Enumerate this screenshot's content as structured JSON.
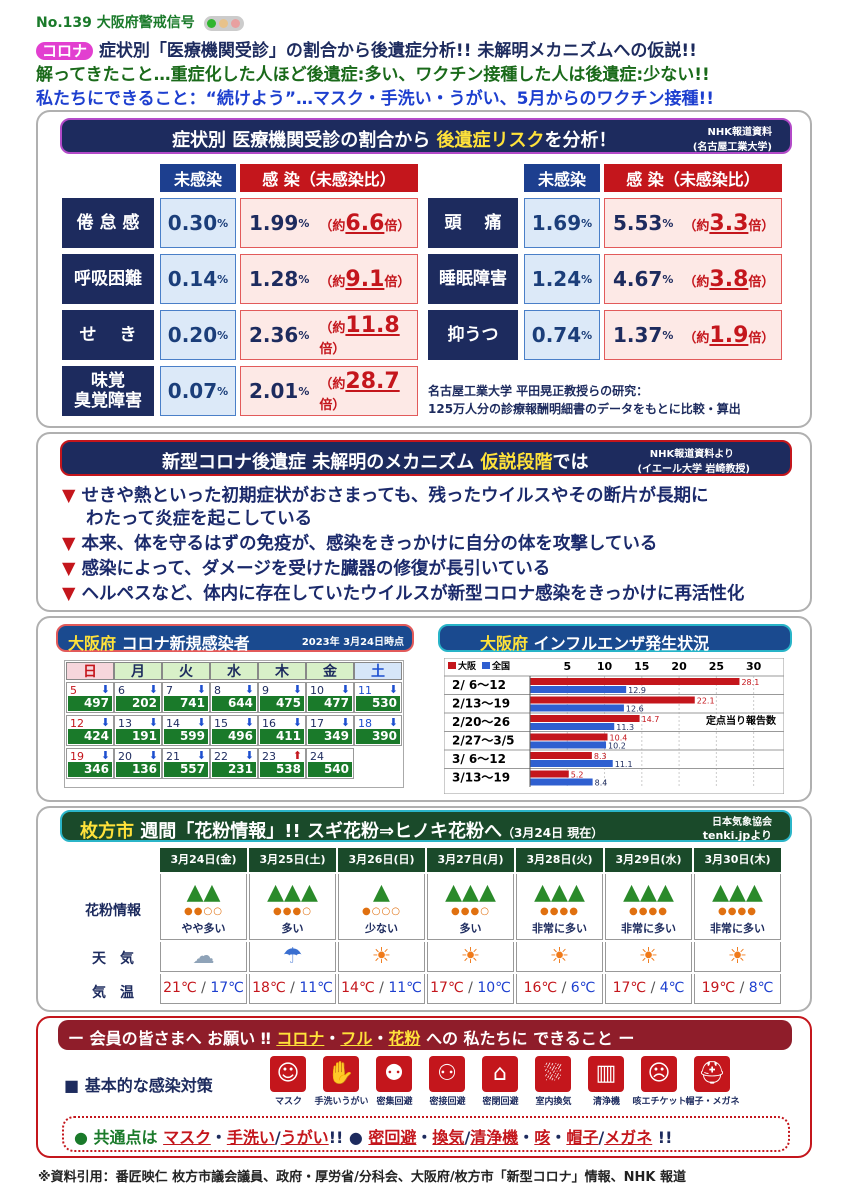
{
  "header": {
    "issue": "No.139 大阪府警戒信号",
    "badge": "コロナ",
    "line1": "症状別「医療機関受診」の割合から後遺症分析!! 未解明メカニズムへの仮説!!",
    "line2": "解ってきたこと…重症化した人ほど後遺症:多い、ワクチン接種した人は後遺症:少ない!!",
    "line3": "私たちにできること：“続けよう”…マスク・手洗い・うがい、5月からのワクチン接種!!"
  },
  "colors": {
    "navy": "#1d2b5e",
    "red": "#c4161c",
    "green": "#1a7a2a",
    "blue": "#1d3f8f"
  },
  "section1": {
    "title_a": "症状別 医療機関受診の割合から ",
    "title_b": "後遺症リスク",
    "title_c": "を分析！",
    "source1": "NHK報道資料",
    "source2": "(名古屋工業大学)",
    "hdr_uninfected": "未感染",
    "hdr_infected": "感 染（未感染比）",
    "rows_left": [
      {
        "label": "倦 怠 感",
        "uninf": "0.30",
        "inf": "1.99",
        "ratio": "6.6"
      },
      {
        "label": "呼吸困難",
        "uninf": "0.14",
        "inf": "1.28",
        "ratio": "9.1"
      },
      {
        "label": "せ　 き",
        "uninf": "0.20",
        "inf": "2.36",
        "ratio": "11.8"
      },
      {
        "label": "味覚\n臭覚障害",
        "uninf": "0.07",
        "inf": "2.01",
        "ratio": "28.7"
      }
    ],
    "rows_right": [
      {
        "label": "頭　 痛",
        "uninf": "1.69",
        "inf": "5.53",
        "ratio": "3.3"
      },
      {
        "label": "睡眠障害",
        "uninf": "1.24",
        "inf": "4.67",
        "ratio": "3.8"
      },
      {
        "label": "抑うつ",
        "uninf": "0.74",
        "inf": "1.37",
        "ratio": "1.9"
      }
    ],
    "pct_unit": "%",
    "ratio_prefix": "（約",
    "ratio_suffix": "倍）",
    "note1": "名古屋工業大学 平田晃正教授らの研究：",
    "note2": "125万人分の診療報酬明細書のデータをもとに比較・算出"
  },
  "section2": {
    "title_a": "新型コロナ後遺症 未解明のメカニズム ",
    "title_b": "仮説段階",
    "title_c": "では",
    "source1": "NHK報道資料より",
    "source2": "(イエール大学 岩崎教授)",
    "bullets": [
      "せきや熱といった初期症状がおさまっても、残ったウイルスやその断片が長期に",
      "わたって炎症を起こしている",
      "本来、体を守るはずの免疫が、感染をきっかけに自分の体を攻撃している",
      "感染によって、ダメージを受けた臓器の修復が長引いている",
      "ヘルペスなど、体内に存在していたウイルスが新型コロナ感染をきっかけに再活性化"
    ]
  },
  "osaka": {
    "title_a": "大阪府",
    "title_b": " コロナ新規感染者",
    "date": "2023年 3月24日時点",
    "weekdays": [
      "日",
      "月",
      "火",
      "水",
      "木",
      "金",
      "土"
    ],
    "weeks": [
      [
        {
          "d": "5",
          "v": "497"
        },
        {
          "d": "6",
          "v": "202"
        },
        {
          "d": "7",
          "v": "741"
        },
        {
          "d": "8",
          "v": "644"
        },
        {
          "d": "9",
          "v": "475"
        },
        {
          "d": "10",
          "v": "477"
        },
        {
          "d": "11",
          "v": "530"
        }
      ],
      [
        {
          "d": "12",
          "v": "424"
        },
        {
          "d": "13",
          "v": "191"
        },
        {
          "d": "14",
          "v": "599"
        },
        {
          "d": "15",
          "v": "496"
        },
        {
          "d": "16",
          "v": "411"
        },
        {
          "d": "17",
          "v": "349"
        },
        {
          "d": "18",
          "v": "390"
        }
      ],
      [
        {
          "d": "19",
          "v": "346"
        },
        {
          "d": "20",
          "v": "136"
        },
        {
          "d": "21",
          "v": "557"
        },
        {
          "d": "22",
          "v": "231"
        },
        {
          "d": "23",
          "v": "538"
        },
        {
          "d": "24",
          "v": "540"
        }
      ]
    ]
  },
  "chart_data": {
    "type": "bar",
    "title": "大阪府 インフルエンザ発生状況",
    "categories": [
      "2/ 6〜12",
      "2/13〜19",
      "2/20〜26",
      "2/27〜3/5",
      "3/ 6〜12",
      "3/13〜19"
    ],
    "series": [
      {
        "name": "大阪",
        "color": "#c4161c",
        "values": [
          28.1,
          22.1,
          14.7,
          10.4,
          8.3,
          5.2
        ]
      },
      {
        "name": "全国",
        "color": "#2f5fd0",
        "values": [
          12.9,
          12.6,
          11.3,
          10.2,
          11.1,
          8.4
        ]
      }
    ],
    "xticks": [
      5,
      10,
      15,
      20,
      25,
      30
    ],
    "xlim": [
      0,
      33
    ],
    "annotation": "定点当り報告数",
    "orientation": "horizontal",
    "legend": "top-left"
  },
  "pollen": {
    "title_a": "枚方市",
    "title_b": " 週間「花粉情報」!! スギ花粉⇒ヒノキ花粉へ",
    "title_c": "（3月24日 現在）",
    "source1": "日本気象協会",
    "source2": "tenki.jpより",
    "row_pollen": "花粉情報",
    "row_weather": "天　気",
    "row_temp": "気　温",
    "days": [
      {
        "date": "3月24日(金)",
        "level": "やや多い",
        "weather": "cloudy",
        "hi": "21℃",
        "lo": "17℃"
      },
      {
        "date": "3月25日(土)",
        "level": "多い",
        "weather": "cloud-rain",
        "hi": "18℃",
        "lo": "11℃"
      },
      {
        "date": "3月26日(日)",
        "level": "少ない",
        "weather": "rain-sun",
        "hi": "14℃",
        "lo": "11℃"
      },
      {
        "date": "3月27日(月)",
        "level": "多い",
        "weather": "sunny",
        "hi": "17℃",
        "lo": "10℃"
      },
      {
        "date": "3月28日(火)",
        "level": "非常に多い",
        "weather": "sunny",
        "hi": "16℃",
        "lo": "6℃"
      },
      {
        "date": "3月29日(水)",
        "level": "非常に多い",
        "weather": "sun-cloud",
        "hi": "17℃",
        "lo": "4℃"
      },
      {
        "date": "3月30日(木)",
        "level": "非常に多い",
        "weather": "sun-cloud",
        "hi": "19℃",
        "lo": "8℃"
      }
    ]
  },
  "footer_box": {
    "title_a": "ー 会員の皆さまへ お願い ‼ ",
    "title_b": "コロナ",
    "title_c": "・",
    "title_d": "フル",
    "title_e": "・",
    "title_f": "花粉",
    "title_g": " への 私たちに できること ー",
    "measures_label": "■ 基本的な感染対策",
    "measures": [
      "マスク",
      "手洗いうがい",
      "密集回避",
      "密接回避",
      "密閉回避",
      "室内換気",
      "清浄機",
      "咳エチケット",
      "帽子・メガネ"
    ],
    "common_a": "● 共通点は ",
    "common_b": "マスク",
    "common_c": "・",
    "common_d": "手洗い",
    "common_e": "/",
    "common_f": "うがい",
    "common_g": "!!  ● ",
    "common_h": "密回避",
    "common_i": "・",
    "common_j": "換気",
    "common_k": "/",
    "common_l": "清浄機",
    "common_m": "・",
    "common_n": "咳",
    "common_o": "・",
    "common_p": "帽子",
    "common_q": "/",
    "common_r": "メガネ",
    "common_s": " !!"
  },
  "credits": "※資料引用：番匠映仁 枚方市議会議員、政府・厚労省/分科会、大阪府/枚方市「新型コロナ」情報、NHK 報道"
}
